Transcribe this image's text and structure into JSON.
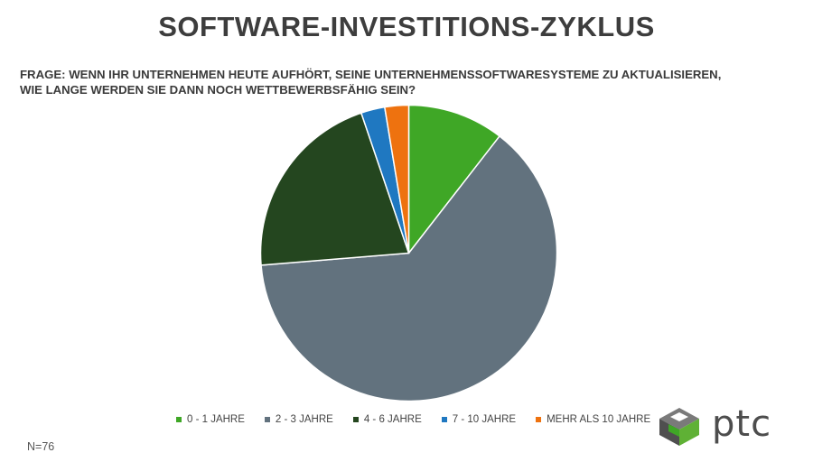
{
  "title": "SOFTWARE-INVESTITIONS-ZYKLUS",
  "question": {
    "line1": "FRAGE: WENN IHR UNTERNEHMEN HEUTE AUFHÖRT, SEINE UNTERNEHMENSSOFTWARESYSTEME ZU AKTUALISIEREN,",
    "line2": "WIE LANGE WERDEN SIE DANN NOCH WETTBEWERBSFÄHIG SEIN?"
  },
  "sample_size": "N=76",
  "logo": {
    "text": "ptc",
    "icon": "ptc-logo-icon"
  },
  "chart_data": {
    "type": "pie",
    "categories": [
      "0 - 1 JAHRE",
      "2 - 3 JAHRE",
      "4 - 6 JAHRE",
      "7 - 10 JAHRE",
      "MEHR ALS 10 JAHRE"
    ],
    "values": [
      10.5,
      63.2,
      21.1,
      2.6,
      2.6
    ],
    "colors": [
      "#3fa726",
      "#62727e",
      "#24461f",
      "#1f78c1",
      "#ee720f"
    ],
    "legend_position": "bottom",
    "start_angle": "12 o'clock",
    "direction": "clockwise"
  }
}
